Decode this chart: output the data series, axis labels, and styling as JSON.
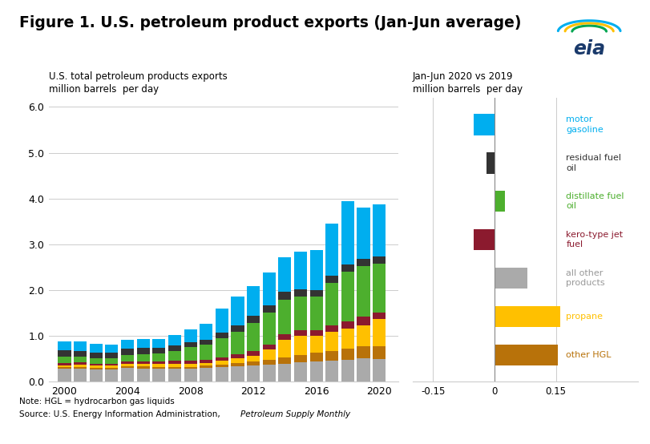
{
  "title": "Figure 1. U.S. petroleum product exports (Jan-Jun average)",
  "left_title_line1": "U.S. total petroleum products exports",
  "left_title_line2": "million barrels  per day",
  "right_title_line1": "Jan-Jun 2020 vs 2019",
  "right_title_line2": "million barrels  per day",
  "note": "Note: HGL = hydrocarbon gas liquids",
  "source_normal": "Source: U.S. Energy Information Administration, ",
  "source_italic": "Petroleum Supply Monthly",
  "years": [
    2000,
    2001,
    2002,
    2003,
    2004,
    2005,
    2006,
    2007,
    2008,
    2009,
    2010,
    2011,
    2012,
    2013,
    2014,
    2015,
    2016,
    2017,
    2018,
    2019,
    2020
  ],
  "series": {
    "all_other": [
      0.28,
      0.28,
      0.27,
      0.27,
      0.3,
      0.29,
      0.28,
      0.28,
      0.28,
      0.3,
      0.32,
      0.34,
      0.36,
      0.38,
      0.4,
      0.42,
      0.44,
      0.46,
      0.48,
      0.52,
      0.5
    ],
    "other_hgl": [
      0.04,
      0.04,
      0.04,
      0.04,
      0.04,
      0.05,
      0.05,
      0.05,
      0.05,
      0.05,
      0.06,
      0.07,
      0.08,
      0.1,
      0.14,
      0.16,
      0.19,
      0.22,
      0.24,
      0.26,
      0.28
    ],
    "propane": [
      0.04,
      0.05,
      0.05,
      0.05,
      0.06,
      0.06,
      0.06,
      0.07,
      0.06,
      0.06,
      0.08,
      0.1,
      0.13,
      0.22,
      0.38,
      0.42,
      0.38,
      0.42,
      0.44,
      0.46,
      0.6
    ],
    "kero_jet": [
      0.05,
      0.05,
      0.04,
      0.04,
      0.05,
      0.05,
      0.05,
      0.06,
      0.07,
      0.07,
      0.08,
      0.09,
      0.1,
      0.11,
      0.12,
      0.13,
      0.12,
      0.14,
      0.16,
      0.18,
      0.13
    ],
    "distillate_fuel_oil": [
      0.14,
      0.13,
      0.12,
      0.12,
      0.14,
      0.16,
      0.18,
      0.22,
      0.3,
      0.34,
      0.42,
      0.5,
      0.62,
      0.7,
      0.76,
      0.74,
      0.74,
      0.92,
      1.08,
      1.1,
      1.07
    ],
    "residual_fuel_oil": [
      0.14,
      0.13,
      0.12,
      0.11,
      0.13,
      0.13,
      0.12,
      0.12,
      0.11,
      0.1,
      0.12,
      0.14,
      0.15,
      0.16,
      0.16,
      0.15,
      0.13,
      0.16,
      0.16,
      0.17,
      0.15
    ],
    "motor_gasoline": [
      0.2,
      0.2,
      0.19,
      0.18,
      0.19,
      0.2,
      0.2,
      0.23,
      0.28,
      0.35,
      0.52,
      0.62,
      0.65,
      0.72,
      0.76,
      0.82,
      0.88,
      1.14,
      1.38,
      1.12,
      1.14
    ]
  },
  "colors": {
    "motor_gasoline": "#00AEEF",
    "residual_fuel_oil": "#333333",
    "distillate_fuel_oil": "#4DAF2E",
    "kero_jet": "#8B1A2E",
    "propane": "#FFC000",
    "other_hgl": "#B8720A",
    "all_other": "#AAAAAA"
  },
  "right_bars": [
    {
      "key": "motor_gasoline",
      "value": -0.05,
      "color": "#00AEEF",
      "label": "motor\ngasoline",
      "label_color": "#00AEEF"
    },
    {
      "key": "residual_fuel_oil",
      "value": -0.02,
      "color": "#333333",
      "label": "residual fuel\noil",
      "label_color": "#333333"
    },
    {
      "key": "distillate_fuel_oil",
      "value": 0.025,
      "color": "#4DAF2E",
      "label": "distillate fuel\noil",
      "label_color": "#4DAF2E"
    },
    {
      "key": "kero_jet",
      "value": -0.05,
      "color": "#8B1A2E",
      "label": "kero-type jet\nfuel",
      "label_color": "#8B1A2E"
    },
    {
      "key": "all_other",
      "value": 0.08,
      "color": "#AAAAAA",
      "label": "all other\nproducts",
      "label_color": "#999999"
    },
    {
      "key": "propane",
      "value": 0.16,
      "color": "#FFC000",
      "label": "propane",
      "label_color": "#FFC000"
    },
    {
      "key": "other_hgl",
      "value": 0.155,
      "color": "#B8720A",
      "label": "other HGL",
      "label_color": "#B8720A"
    }
  ],
  "right_xlim": [
    -0.2,
    0.35
  ],
  "right_xticks": [
    -0.15,
    0.0,
    0.15
  ],
  "right_xtick_labels": [
    "-0.15",
    "0",
    "0.15"
  ],
  "ylim": [
    0.0,
    6.2
  ],
  "yticks": [
    0.0,
    1.0,
    2.0,
    3.0,
    4.0,
    5.0,
    6.0
  ]
}
